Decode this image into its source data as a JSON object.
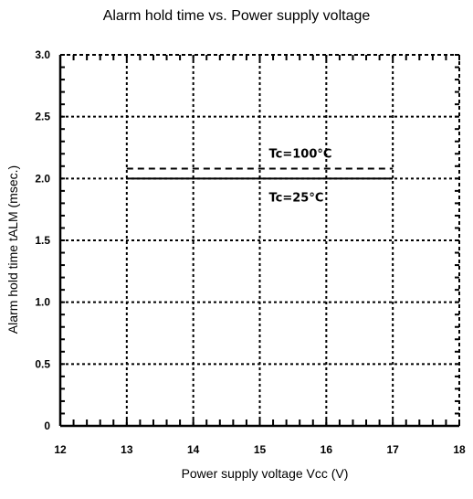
{
  "chart_data": {
    "type": "line",
    "title": "Alarm hold time vs. Power supply voltage",
    "xlabel": "Power supply voltage  Vcc (V)",
    "ylabel": "Alarm hold time  tALM (msec.)",
    "xlim": [
      12,
      18
    ],
    "ylim": [
      0,
      3.0
    ],
    "x_ticks": [
      "12",
      "13",
      "14",
      "15",
      "16",
      "17",
      "18"
    ],
    "y_ticks": [
      "0",
      "0.5",
      "1.0",
      "1.5",
      "2.0",
      "2.5",
      "3.0"
    ],
    "grid": true,
    "series": [
      {
        "name": "Tc=100°C",
        "style": "dashed",
        "color": "#000000",
        "x": [
          13,
          17
        ],
        "y": [
          2.08,
          2.08
        ]
      },
      {
        "name": "Tc=25°C",
        "style": "solid",
        "color": "#000000",
        "x": [
          13,
          17
        ],
        "y": [
          2.0,
          2.0
        ]
      }
    ]
  }
}
